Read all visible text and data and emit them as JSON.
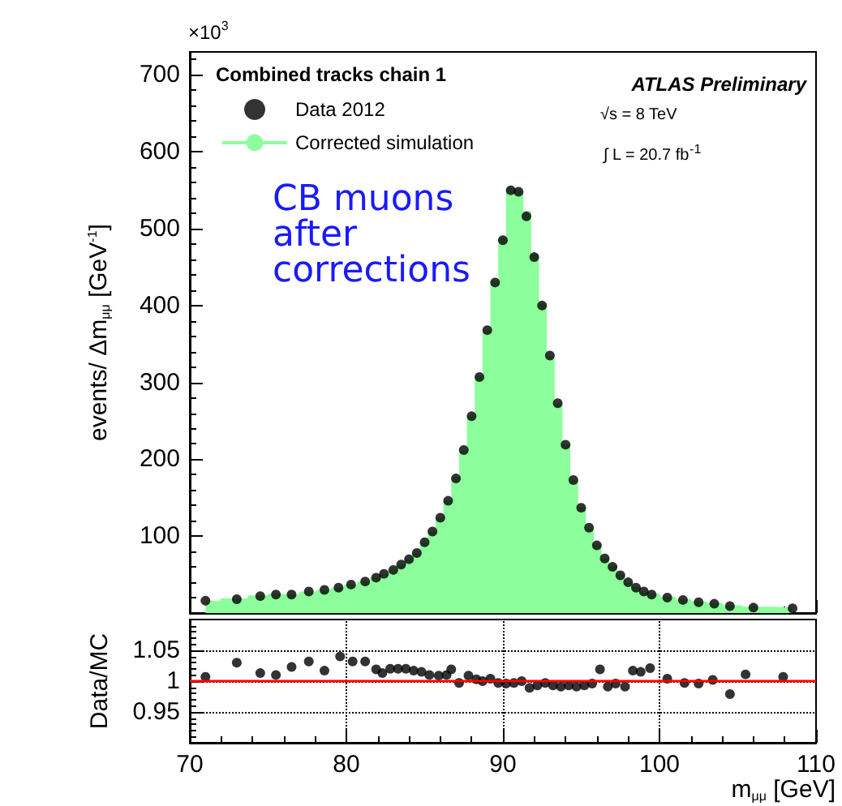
{
  "chart_data": [
    {
      "type": "area",
      "ylabel": "events/ Δm$_{μμ}$ [GeV$^{-1}$]",
      "legend": "top left",
      "legend_title": "Combined tracks chain 1",
      "tick_labels": "y",
      "annotations": [
        "×10$^{3}$",
        "ATLAS Preliminary",
        "√s = 8 TeV",
        "∫ L = 20.7 fb$^{-1}$",
        "CB muons\nafter\ncorrections"
      ],
      "xlim": [
        70,
        110
      ],
      "xticks": [
        70,
        80,
        90,
        100,
        110
      ],
      "ylim": [
        0,
        730
      ],
      "yticks": [
        100,
        200,
        300,
        400,
        500,
        600,
        700
      ],
      "series": [
        {
          "name": "Data 2012",
          "type": "scatter",
          "marker": "circle",
          "color": "#000000",
          "x": [
            71.0,
            73.0,
            74.5,
            75.5,
            76.5,
            77.6,
            78.6,
            79.5,
            80.3,
            81.2,
            81.9,
            82.4,
            83.0,
            83.5,
            84.0,
            84.5,
            85.0,
            85.5,
            86.0,
            86.5,
            87.0,
            87.5,
            88.0,
            88.5,
            89.0,
            89.5,
            90.0,
            90.5,
            91.0,
            91.5,
            92.0,
            92.5,
            93.0,
            93.5,
            94.0,
            94.5,
            95.0,
            95.5,
            96.0,
            96.5,
            97.0,
            97.5,
            98.0,
            98.5,
            99.0,
            99.5,
            100.5,
            101.5,
            102.5,
            103.5,
            104.5,
            106.0,
            108.5
          ],
          "values": [
            16,
            18,
            22,
            24,
            24,
            28,
            30,
            33,
            37,
            41,
            46,
            51,
            56,
            63,
            70,
            78,
            92,
            106,
            124,
            146,
            175,
            212,
            256,
            307,
            368,
            430,
            485,
            550,
            548,
            516,
            463,
            400,
            335,
            273,
            219,
            173,
            137,
            111,
            88,
            71,
            60,
            49,
            40,
            33,
            28,
            24,
            20,
            17,
            14,
            12,
            9,
            7,
            6
          ]
        },
        {
          "name": "Corrected simulation",
          "color": "#8cff9c",
          "x": [
            71.0,
            73.0,
            74.5,
            75.5,
            76.5,
            77.6,
            78.6,
            79.5,
            80.3,
            81.2,
            81.9,
            82.4,
            83.0,
            83.5,
            84.0,
            84.5,
            85.0,
            85.5,
            86.0,
            86.5,
            87.0,
            87.5,
            88.0,
            88.5,
            89.0,
            89.5,
            90.0,
            90.5,
            91.0,
            91.5,
            92.0,
            92.5,
            93.0,
            93.5,
            94.0,
            94.5,
            95.0,
            95.5,
            96.0,
            96.5,
            97.0,
            97.5,
            98.0,
            98.5,
            99.0,
            99.5,
            100.5,
            101.5,
            102.5,
            103.5,
            104.5,
            106.0,
            108.5
          ],
          "values": [
            15,
            18,
            22,
            24,
            23,
            27,
            29,
            32,
            36,
            40,
            45,
            50,
            55,
            62,
            69,
            77,
            91,
            105,
            123,
            145,
            176,
            210,
            255,
            307,
            367,
            431,
            487,
            552,
            548,
            522,
            466,
            401,
            333,
            271,
            218,
            172,
            136,
            109,
            88,
            70,
            60,
            49,
            39,
            33,
            27,
            24,
            20,
            17,
            14,
            12,
            9,
            7,
            6
          ]
        }
      ]
    },
    {
      "type": "scatter",
      "xlabel": "m$_{μμ}$ [GeV]",
      "ylabel": "Data/MC",
      "grid": true,
      "marker": "circle",
      "xlim": [
        70,
        110
      ],
      "xticks": [
        70,
        80,
        90,
        100,
        110
      ],
      "ylim": [
        0.9,
        1.1
      ],
      "yticks": [
        0.95,
        1,
        1.05
      ],
      "ref_lines": [
        {
          "axis": "y",
          "value": 1,
          "color": "#ff0000"
        }
      ],
      "series": [
        {
          "type": "scatter",
          "color": "#000000",
          "x": [
            71.0,
            73.0,
            74.5,
            75.5,
            76.5,
            77.6,
            78.6,
            79.6,
            80.4,
            81.2,
            81.9,
            82.3,
            82.8,
            83.3,
            83.8,
            84.3,
            84.8,
            85.3,
            85.9,
            86.4,
            86.7,
            87.2,
            87.8,
            88.3,
            88.7,
            89.2,
            89.7,
            90.2,
            90.7,
            91.2,
            91.7,
            92.2,
            92.7,
            93.2,
            93.7,
            94.2,
            94.7,
            95.2,
            95.7,
            96.2,
            96.7,
            97.2,
            97.8,
            98.3,
            98.8,
            99.4,
            100.5,
            101.6,
            102.5,
            103.4,
            104.5,
            105.5,
            107.9
          ],
          "values": [
            1.007,
            1.03,
            1.013,
            1.01,
            1.023,
            1.032,
            1.017,
            1.04,
            1.032,
            1.032,
            1.019,
            1.013,
            1.02,
            1.02,
            1.02,
            1.017,
            1.015,
            1.01,
            1.009,
            1.01,
            1.019,
            0.997,
            1.009,
            1.003,
            1.0,
            1.004,
            0.997,
            0.996,
            0.997,
            1.0,
            0.989,
            0.993,
            0.997,
            0.993,
            0.991,
            0.993,
            0.991,
            0.993,
            0.996,
            1.019,
            0.991,
            0.996,
            0.991,
            1.017,
            1.015,
            1.021,
            1.004,
            0.997,
            0.996,
            1.002,
            0.979,
            1.011,
            1.007
          ]
        }
      ]
    }
  ]
}
